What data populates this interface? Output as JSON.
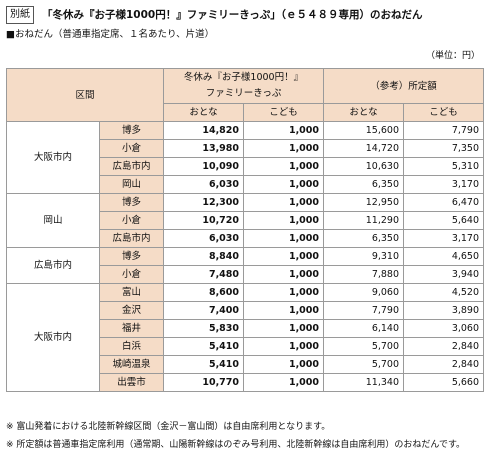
{
  "header": {
    "label": "別紙",
    "title": "「冬休み『お子様1000円！』ファミリーきっぷ」（ｅ５４８９専用）のおねだん"
  },
  "subtitle": "■おねだん（普通車指定席、１名あたり、片道）",
  "unit": "（単位：円）",
  "table": {
    "section_header": "区間",
    "family_ticket_header_line1": "冬休み『お子様1000円！』",
    "family_ticket_header_line2": "ファミリーきっぷ",
    "reference_header": "（参考）所定額",
    "adult": "おとな",
    "child": "こども",
    "groups": [
      {
        "origin": "大阪市内",
        "rows": [
          {
            "dest": "博多",
            "fa": "14,820",
            "fc": "1,000",
            "ra": "15,600",
            "rc": "7,790"
          },
          {
            "dest": "小倉",
            "fa": "13,980",
            "fc": "1,000",
            "ra": "14,720",
            "rc": "7,350"
          },
          {
            "dest": "広島市内",
            "fa": "10,090",
            "fc": "1,000",
            "ra": "10,630",
            "rc": "5,310"
          },
          {
            "dest": "岡山",
            "fa": "6,030",
            "fc": "1,000",
            "ra": "6,350",
            "rc": "3,170"
          }
        ]
      },
      {
        "origin": "岡山",
        "rows": [
          {
            "dest": "博多",
            "fa": "12,300",
            "fc": "1,000",
            "ra": "12,950",
            "rc": "6,470"
          },
          {
            "dest": "小倉",
            "fa": "10,720",
            "fc": "1,000",
            "ra": "11,290",
            "rc": "5,640"
          },
          {
            "dest": "広島市内",
            "fa": "6,030",
            "fc": "1,000",
            "ra": "6,350",
            "rc": "3,170"
          }
        ]
      },
      {
        "origin": "広島市内",
        "rows": [
          {
            "dest": "博多",
            "fa": "8,840",
            "fc": "1,000",
            "ra": "9,310",
            "rc": "4,650"
          },
          {
            "dest": "小倉",
            "fa": "7,480",
            "fc": "1,000",
            "ra": "7,880",
            "rc": "3,940"
          }
        ]
      },
      {
        "origin": "大阪市内",
        "rows": [
          {
            "dest": "富山",
            "fa": "8,600",
            "fc": "1,000",
            "ra": "9,060",
            "rc": "4,520"
          },
          {
            "dest": "金沢",
            "fa": "7,400",
            "fc": "1,000",
            "ra": "7,790",
            "rc": "3,890"
          },
          {
            "dest": "福井",
            "fa": "5,830",
            "fc": "1,000",
            "ra": "6,140",
            "rc": "3,060"
          },
          {
            "dest": "白浜",
            "fa": "5,410",
            "fc": "1,000",
            "ra": "5,700",
            "rc": "2,840"
          },
          {
            "dest": "城崎温泉",
            "fa": "5,410",
            "fc": "1,000",
            "ra": "5,700",
            "rc": "2,840"
          },
          {
            "dest": "出雲市",
            "fa": "10,770",
            "fc": "1,000",
            "ra": "11,340",
            "rc": "5,660"
          }
        ]
      }
    ]
  },
  "notes": [
    "※ 富山発着における北陸新幹線区間（金沢－富山間）は自由席利用となります。",
    "※ 所定額は普通車指定席利用（通常期、山陽新幹線はのぞみ号利用、北陸新幹線は自由席利用）のおねだんです。"
  ],
  "colors": {
    "header_bg": "#f5dcc7",
    "border": "#9a9a9a"
  }
}
